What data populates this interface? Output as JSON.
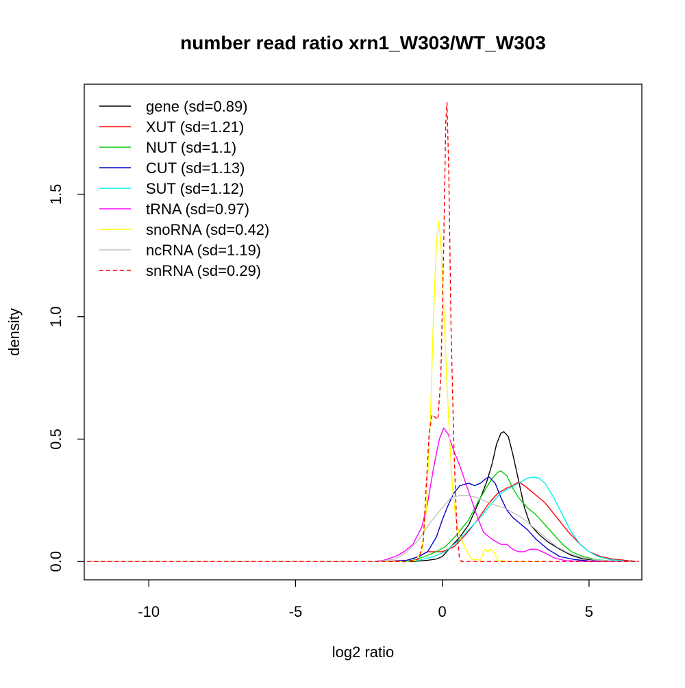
{
  "chart_data": {
    "type": "line",
    "title": "number read ratio xrn1_W303/WT_W303",
    "xlabel": "log2 ratio",
    "ylabel": "density",
    "xlim": [
      -12.2,
      6.8
    ],
    "ylim": [
      -0.075,
      1.95
    ],
    "x_ticks": [
      -10,
      -5,
      0,
      5
    ],
    "x_tick_labels": [
      "-10",
      "-5",
      "0",
      "5"
    ],
    "y_ticks": [
      0.0,
      0.5,
      1.0,
      1.5
    ],
    "y_tick_labels": [
      "0.0",
      "0.5",
      "1.0",
      "1.5"
    ],
    "grid": false,
    "legend_position": "top-left",
    "series": [
      {
        "name": "gene (sd=0.89)",
        "color": "#000000",
        "dash": "solid",
        "points": [
          [
            -12.1,
            0
          ],
          [
            -1.0,
            0
          ],
          [
            -0.5,
            0.005
          ],
          [
            -0.2,
            0.01
          ],
          [
            0,
            0.02
          ],
          [
            0.3,
            0.06
          ],
          [
            0.6,
            0.1
          ],
          [
            0.9,
            0.15
          ],
          [
            1.2,
            0.23
          ],
          [
            1.5,
            0.32
          ],
          [
            1.7,
            0.4
          ],
          [
            1.85,
            0.48
          ],
          [
            2.0,
            0.525
          ],
          [
            2.1,
            0.53
          ],
          [
            2.25,
            0.51
          ],
          [
            2.4,
            0.44
          ],
          [
            2.6,
            0.33
          ],
          [
            2.8,
            0.22
          ],
          [
            3.0,
            0.15
          ],
          [
            3.3,
            0.11
          ],
          [
            3.6,
            0.08
          ],
          [
            4.0,
            0.05
          ],
          [
            4.4,
            0.025
          ],
          [
            4.8,
            0.01
          ],
          [
            5.5,
            0.003
          ],
          [
            6.7,
            0
          ]
        ]
      },
      {
        "name": "XUT (sd=1.21)",
        "color": "#ff0000",
        "dash": "solid",
        "points": [
          [
            -12.1,
            0
          ],
          [
            -2.0,
            0
          ],
          [
            -1.2,
            0.005
          ],
          [
            -0.8,
            0.02
          ],
          [
            -0.5,
            0.04
          ],
          [
            0,
            0.04
          ],
          [
            0.4,
            0.06
          ],
          [
            0.8,
            0.11
          ],
          [
            1.2,
            0.17
          ],
          [
            1.6,
            0.24
          ],
          [
            1.9,
            0.28
          ],
          [
            2.2,
            0.3
          ],
          [
            2.4,
            0.31
          ],
          [
            2.6,
            0.325
          ],
          [
            2.8,
            0.31
          ],
          [
            3.1,
            0.28
          ],
          [
            3.5,
            0.24
          ],
          [
            3.9,
            0.18
          ],
          [
            4.3,
            0.12
          ],
          [
            4.7,
            0.07
          ],
          [
            5.0,
            0.04
          ],
          [
            5.4,
            0.02
          ],
          [
            5.8,
            0.01
          ],
          [
            6.2,
            0.005
          ],
          [
            6.7,
            0
          ]
        ]
      },
      {
        "name": "NUT (sd=1.1)",
        "color": "#00cc00",
        "dash": "solid",
        "points": [
          [
            -12.1,
            0
          ],
          [
            -1.5,
            0
          ],
          [
            -1.0,
            0.005
          ],
          [
            -0.6,
            0.02
          ],
          [
            -0.2,
            0.04
          ],
          [
            0.1,
            0.06
          ],
          [
            0.5,
            0.11
          ],
          [
            0.9,
            0.17
          ],
          [
            1.2,
            0.24
          ],
          [
            1.5,
            0.3
          ],
          [
            1.7,
            0.34
          ],
          [
            1.9,
            0.365
          ],
          [
            2.0,
            0.37
          ],
          [
            2.2,
            0.35
          ],
          [
            2.4,
            0.3
          ],
          [
            2.6,
            0.26
          ],
          [
            2.9,
            0.22
          ],
          [
            3.2,
            0.19
          ],
          [
            3.5,
            0.15
          ],
          [
            3.8,
            0.11
          ],
          [
            4.1,
            0.07
          ],
          [
            4.4,
            0.04
          ],
          [
            4.8,
            0.02
          ],
          [
            5.3,
            0.006
          ],
          [
            6.0,
            0.001
          ],
          [
            6.7,
            0
          ]
        ]
      },
      {
        "name": "CUT (sd=1.13)",
        "color": "#0000cc",
        "dash": "solid",
        "points": [
          [
            -12.1,
            0
          ],
          [
            -1.8,
            0
          ],
          [
            -1.2,
            0.005
          ],
          [
            -0.8,
            0.02
          ],
          [
            -0.5,
            0.04
          ],
          [
            -0.2,
            0.1
          ],
          [
            0,
            0.17
          ],
          [
            0.2,
            0.23
          ],
          [
            0.4,
            0.28
          ],
          [
            0.6,
            0.31
          ],
          [
            0.9,
            0.32
          ],
          [
            1.1,
            0.31
          ],
          [
            1.3,
            0.32
          ],
          [
            1.5,
            0.34
          ],
          [
            1.6,
            0.345
          ],
          [
            1.8,
            0.32
          ],
          [
            2.0,
            0.26
          ],
          [
            2.2,
            0.21
          ],
          [
            2.4,
            0.18
          ],
          [
            2.6,
            0.16
          ],
          [
            2.9,
            0.13
          ],
          [
            3.2,
            0.09
          ],
          [
            3.6,
            0.05
          ],
          [
            4.0,
            0.02
          ],
          [
            4.5,
            0.008
          ],
          [
            5.0,
            0.002
          ],
          [
            6.7,
            0
          ]
        ]
      },
      {
        "name": "SUT (sd=1.12)",
        "color": "#00eeee",
        "dash": "solid",
        "points": [
          [
            -12.1,
            0
          ],
          [
            -1.5,
            0
          ],
          [
            -0.8,
            0.005
          ],
          [
            -0.3,
            0.02
          ],
          [
            0.1,
            0.04
          ],
          [
            0.5,
            0.08
          ],
          [
            0.9,
            0.13
          ],
          [
            1.3,
            0.18
          ],
          [
            1.7,
            0.24
          ],
          [
            2.0,
            0.28
          ],
          [
            2.3,
            0.3
          ],
          [
            2.6,
            0.32
          ],
          [
            2.9,
            0.34
          ],
          [
            3.1,
            0.345
          ],
          [
            3.3,
            0.34
          ],
          [
            3.5,
            0.32
          ],
          [
            3.8,
            0.26
          ],
          [
            4.1,
            0.19
          ],
          [
            4.4,
            0.12
          ],
          [
            4.7,
            0.07
          ],
          [
            5.0,
            0.04
          ],
          [
            5.3,
            0.02
          ],
          [
            5.7,
            0.008
          ],
          [
            6.2,
            0.002
          ],
          [
            6.7,
            0
          ]
        ]
      },
      {
        "name": "tRNA (sd=0.97)",
        "color": "#ff00ff",
        "dash": "solid",
        "points": [
          [
            -12.1,
            0
          ],
          [
            -2.3,
            0
          ],
          [
            -2.0,
            0.005
          ],
          [
            -1.6,
            0.02
          ],
          [
            -1.3,
            0.04
          ],
          [
            -1.0,
            0.07
          ],
          [
            -0.7,
            0.14
          ],
          [
            -0.5,
            0.24
          ],
          [
            -0.3,
            0.38
          ],
          [
            -0.1,
            0.5
          ],
          [
            0.05,
            0.545
          ],
          [
            0.2,
            0.52
          ],
          [
            0.4,
            0.45
          ],
          [
            0.6,
            0.39
          ],
          [
            0.8,
            0.32
          ],
          [
            1.0,
            0.25
          ],
          [
            1.2,
            0.18
          ],
          [
            1.4,
            0.12
          ],
          [
            1.7,
            0.09
          ],
          [
            2.0,
            0.07
          ],
          [
            2.2,
            0.07
          ],
          [
            2.4,
            0.05
          ],
          [
            2.6,
            0.04
          ],
          [
            2.8,
            0.04
          ],
          [
            3.0,
            0.05
          ],
          [
            3.2,
            0.05
          ],
          [
            3.5,
            0.035
          ],
          [
            3.8,
            0.015
          ],
          [
            4.2,
            0.003
          ],
          [
            5.0,
            0
          ],
          [
            6.7,
            0
          ]
        ]
      },
      {
        "name": "snoRNA (sd=0.42)",
        "color": "#ffff00",
        "dash": "solid",
        "points": [
          [
            -12.1,
            0
          ],
          [
            -1.2,
            0
          ],
          [
            -0.9,
            0.005
          ],
          [
            -0.7,
            0.04
          ],
          [
            -0.55,
            0.2
          ],
          [
            -0.4,
            0.6
          ],
          [
            -0.3,
            1.0
          ],
          [
            -0.2,
            1.3
          ],
          [
            -0.12,
            1.39
          ],
          [
            -0.05,
            1.3
          ],
          [
            0.05,
            1.05
          ],
          [
            0.15,
            0.75
          ],
          [
            0.25,
            0.5
          ],
          [
            0.35,
            0.3
          ],
          [
            0.45,
            0.18
          ],
          [
            0.6,
            0.1
          ],
          [
            0.8,
            0.05
          ],
          [
            1.0,
            0.01
          ],
          [
            1.3,
            0.005
          ],
          [
            1.45,
            0.05
          ],
          [
            1.55,
            0.04
          ],
          [
            1.65,
            0.05
          ],
          [
            1.75,
            0.04
          ],
          [
            1.9,
            0.005
          ],
          [
            2.2,
            0
          ],
          [
            3.5,
            0
          ]
        ]
      },
      {
        "name": "ncRNA (sd=1.19)",
        "color": "#c0c0c0",
        "dash": "solid",
        "points": [
          [
            -12.1,
            0
          ],
          [
            -2.2,
            0
          ],
          [
            -1.6,
            0.01
          ],
          [
            -1.2,
            0.04
          ],
          [
            -0.8,
            0.09
          ],
          [
            -0.4,
            0.16
          ],
          [
            0,
            0.22
          ],
          [
            0.3,
            0.26
          ],
          [
            0.6,
            0.27
          ],
          [
            0.9,
            0.27
          ],
          [
            1.2,
            0.26
          ],
          [
            1.5,
            0.245
          ],
          [
            1.8,
            0.23
          ],
          [
            2.1,
            0.22
          ],
          [
            2.4,
            0.2
          ],
          [
            2.7,
            0.18
          ],
          [
            3.0,
            0.15
          ],
          [
            3.3,
            0.12
          ],
          [
            3.6,
            0.09
          ],
          [
            3.9,
            0.06
          ],
          [
            4.3,
            0.035
          ],
          [
            4.8,
            0.015
          ],
          [
            5.3,
            0.005
          ],
          [
            6.0,
            0.001
          ],
          [
            6.7,
            0
          ]
        ]
      },
      {
        "name": "snRNA (sd=0.29)",
        "color": "#ff0000",
        "dash": "dashed",
        "points": [
          [
            -12.1,
            0
          ],
          [
            -1.2,
            0
          ],
          [
            -0.8,
            0.01
          ],
          [
            -0.65,
            0.08
          ],
          [
            -0.55,
            0.3
          ],
          [
            -0.45,
            0.52
          ],
          [
            -0.35,
            0.6
          ],
          [
            -0.25,
            0.59
          ],
          [
            -0.15,
            0.58
          ],
          [
            -0.05,
            0.75
          ],
          [
            0.05,
            1.3
          ],
          [
            0.12,
            1.8
          ],
          [
            0.16,
            1.875
          ],
          [
            0.22,
            1.6
          ],
          [
            0.3,
            0.95
          ],
          [
            0.4,
            0.45
          ],
          [
            0.5,
            0.12
          ],
          [
            0.58,
            0.02
          ],
          [
            0.65,
            0
          ],
          [
            6.7,
            0
          ]
        ]
      }
    ]
  }
}
